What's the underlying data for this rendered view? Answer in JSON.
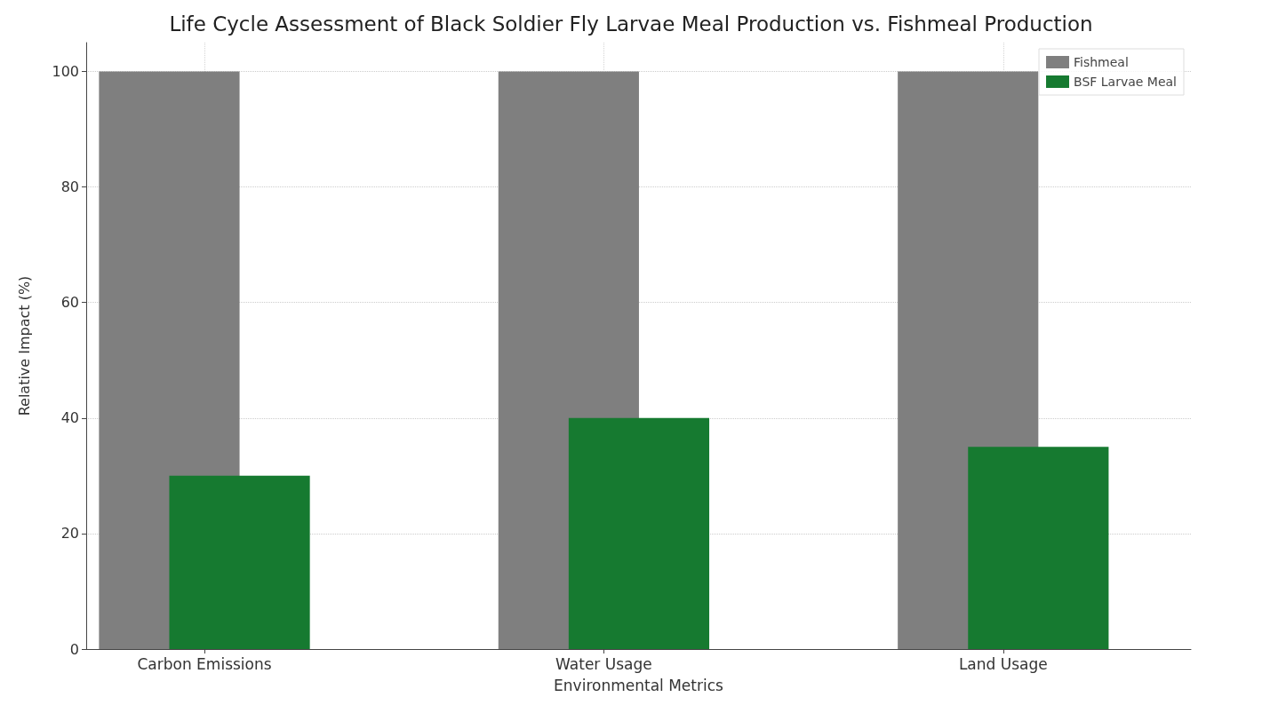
{
  "chart_data": {
    "type": "bar",
    "title": "Life Cycle Assessment of Black Soldier Fly Larvae Meal Production vs. Fishmeal Production",
    "xlabel": "Environmental Metrics",
    "ylabel": "Relative Impact (%)",
    "categories": [
      "Carbon Emissions",
      "Water Usage",
      "Land Usage"
    ],
    "series": [
      {
        "name": "Fishmeal",
        "color": "#7f7f7f",
        "values": [
          100,
          100,
          100
        ]
      },
      {
        "name": "BSF Larvae Meal",
        "color": "#167a30",
        "values": [
          30,
          40,
          35
        ]
      }
    ],
    "ylim": [
      0,
      105
    ],
    "yticks": [
      0,
      20,
      40,
      60,
      80,
      100
    ],
    "grid": true,
    "legend": "top right"
  }
}
